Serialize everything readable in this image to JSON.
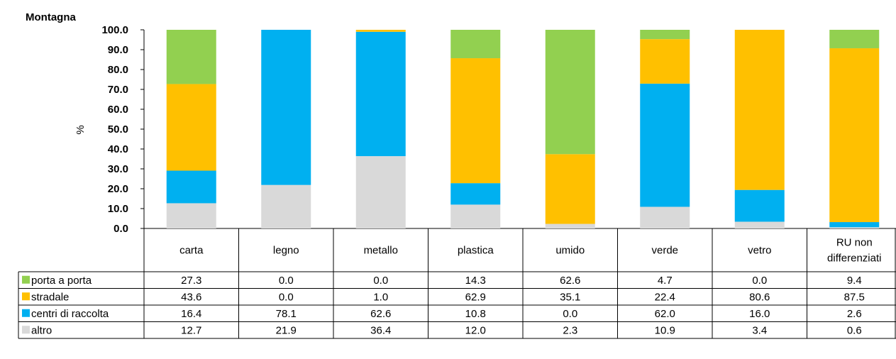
{
  "chart_data": {
    "type": "bar",
    "stacked": true,
    "title": "Montagna",
    "ylabel": "%",
    "ylim": [
      0,
      100
    ],
    "yticks": [
      "0.0",
      "10.0",
      "20.0",
      "30.0",
      "40.0",
      "50.0",
      "60.0",
      "70.0",
      "80.0",
      "90.0",
      "100.0"
    ],
    "categories": [
      "carta",
      "legno",
      "metallo",
      "plastica",
      "umido",
      "verde",
      "vetro",
      "RU non differenziati"
    ],
    "category_lines": [
      [
        "carta"
      ],
      [
        "legno"
      ],
      [
        "metallo"
      ],
      [
        "plastica"
      ],
      [
        "umido"
      ],
      [
        "verde"
      ],
      [
        "vetro"
      ],
      [
        "RU non",
        "differenziati"
      ]
    ],
    "series": [
      {
        "name": "porta a porta",
        "color": "#92d050",
        "values": [
          27.3,
          0.0,
          0.0,
          14.3,
          62.6,
          4.7,
          0.0,
          9.4
        ],
        "labels": [
          "27.3",
          "0.0",
          "0.0",
          "14.3",
          "62.6",
          "4.7",
          "0.0",
          "9.4"
        ]
      },
      {
        "name": "stradale",
        "color": "#ffc000",
        "values": [
          43.6,
          0.0,
          1.0,
          62.9,
          35.1,
          22.4,
          80.6,
          87.5
        ],
        "labels": [
          "43.6",
          "0.0",
          "1.0",
          "62.9",
          "35.1",
          "22.4",
          "80.6",
          "87.5"
        ]
      },
      {
        "name": "centri di raccolta",
        "color": "#00b0f0",
        "values": [
          16.4,
          78.1,
          62.6,
          10.8,
          0.0,
          62.0,
          16.0,
          2.6
        ],
        "labels": [
          "16.4",
          "78.1",
          "62.6",
          "10.8",
          "0.0",
          "62.0",
          "16.0",
          "2.6"
        ]
      },
      {
        "name": "altro",
        "color": "#d9d9d9",
        "values": [
          12.7,
          21.9,
          36.4,
          12.0,
          2.3,
          10.9,
          3.4,
          0.6
        ],
        "labels": [
          "12.7",
          "21.9",
          "36.4",
          "12.0",
          "2.3",
          "10.9",
          "3.4",
          "0.6"
        ]
      }
    ],
    "stack_order": [
      "altro",
      "centri di raccolta",
      "stradale",
      "porta a porta"
    ],
    "grid": true,
    "legend": "data-table"
  }
}
